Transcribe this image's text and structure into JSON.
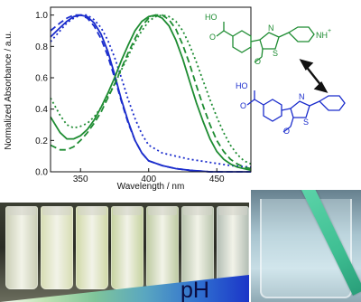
{
  "chart_data": {
    "type": "line",
    "xlabel": "Wavelength / nm",
    "ylabel": "Normalized Absorbance / a.u.",
    "xlim": [
      328,
      475
    ],
    "ylim": [
      0,
      1.05
    ],
    "xticks": [
      350,
      400,
      450
    ],
    "yticks": [
      0.0,
      0.2,
      0.4,
      0.6,
      0.8,
      1.0
    ],
    "yticklabels": [
      "0.0",
      "0.2",
      "0.4",
      "0.6",
      "0.8",
      "1.0"
    ],
    "grid": false,
    "series": [
      {
        "color": "#1a2ccc",
        "style": "solid",
        "x": [
          328,
          335,
          340,
          345,
          350,
          355,
          360,
          365,
          370,
          375,
          380,
          385,
          390,
          395,
          400,
          410,
          420,
          430,
          445,
          460,
          475
        ],
        "y": [
          0.86,
          0.92,
          0.96,
          0.99,
          1.0,
          0.99,
          0.95,
          0.88,
          0.77,
          0.62,
          0.46,
          0.32,
          0.2,
          0.12,
          0.07,
          0.04,
          0.02,
          0.01,
          0.0,
          0.0,
          0.0
        ]
      },
      {
        "color": "#1a2ccc",
        "style": "dashed",
        "x": [
          328,
          335,
          340,
          345,
          350,
          355,
          360,
          365,
          370,
          375,
          380,
          385,
          390,
          395,
          400,
          410,
          420,
          430,
          445,
          460,
          475
        ],
        "y": [
          0.9,
          0.95,
          0.98,
          1.0,
          1.0,
          0.98,
          0.93,
          0.85,
          0.74,
          0.6,
          0.45,
          0.31,
          0.2,
          0.12,
          0.07,
          0.04,
          0.02,
          0.01,
          0.0,
          0.0,
          0.0
        ]
      },
      {
        "color": "#1a2ccc",
        "style": "dotted",
        "x": [
          328,
          335,
          340,
          345,
          350,
          355,
          360,
          365,
          370,
          375,
          380,
          385,
          390,
          395,
          400,
          410,
          420,
          430,
          445,
          460,
          475
        ],
        "y": [
          0.83,
          0.9,
          0.95,
          0.98,
          1.0,
          1.0,
          0.97,
          0.92,
          0.84,
          0.73,
          0.6,
          0.46,
          0.34,
          0.24,
          0.17,
          0.12,
          0.1,
          0.08,
          0.06,
          0.04,
          0.03
        ]
      },
      {
        "color": "#1e8c32",
        "style": "solid",
        "x": [
          328,
          335,
          340,
          345,
          350,
          355,
          360,
          365,
          370,
          375,
          380,
          385,
          390,
          395,
          400,
          405,
          410,
          415,
          420,
          425,
          430,
          435,
          440,
          445,
          450,
          455,
          460,
          465,
          470,
          475
        ],
        "y": [
          0.35,
          0.25,
          0.21,
          0.21,
          0.23,
          0.27,
          0.33,
          0.41,
          0.5,
          0.6,
          0.71,
          0.81,
          0.9,
          0.96,
          0.99,
          1.0,
          0.98,
          0.93,
          0.84,
          0.72,
          0.58,
          0.44,
          0.32,
          0.21,
          0.13,
          0.08,
          0.05,
          0.03,
          0.02,
          0.01
        ]
      },
      {
        "color": "#1e8c32",
        "style": "dashed",
        "x": [
          328,
          335,
          340,
          345,
          350,
          355,
          360,
          365,
          370,
          375,
          380,
          385,
          390,
          395,
          400,
          405,
          410,
          415,
          420,
          425,
          430,
          435,
          440,
          445,
          450,
          455,
          460,
          465,
          470,
          475
        ],
        "y": [
          0.17,
          0.14,
          0.14,
          0.16,
          0.2,
          0.25,
          0.31,
          0.38,
          0.47,
          0.56,
          0.66,
          0.76,
          0.85,
          0.93,
          0.98,
          1.0,
          1.0,
          0.97,
          0.91,
          0.81,
          0.69,
          0.55,
          0.42,
          0.3,
          0.2,
          0.13,
          0.08,
          0.05,
          0.03,
          0.02
        ]
      },
      {
        "color": "#1e8c32",
        "style": "dotted",
        "x": [
          328,
          335,
          340,
          345,
          350,
          355,
          360,
          365,
          370,
          375,
          380,
          385,
          390,
          395,
          400,
          405,
          410,
          415,
          420,
          425,
          430,
          435,
          440,
          445,
          450,
          455,
          460,
          465,
          470,
          475
        ],
        "y": [
          0.47,
          0.36,
          0.3,
          0.28,
          0.29,
          0.31,
          0.35,
          0.41,
          0.48,
          0.56,
          0.65,
          0.74,
          0.83,
          0.9,
          0.96,
          0.99,
          1.0,
          0.99,
          0.96,
          0.9,
          0.81,
          0.7,
          0.58,
          0.46,
          0.35,
          0.25,
          0.17,
          0.11,
          0.07,
          0.05
        ]
      }
    ]
  },
  "molecule_top": {
    "color": "#1e8c32",
    "acid_label": "HO",
    "oxygen_label": "O",
    "methoxy_label": "O",
    "n_label": "N",
    "s_label": "S",
    "pyridinium_label": "NH",
    "charge": "+"
  },
  "molecule_bottom": {
    "color": "#1a2ccc",
    "acid_label": "HO",
    "oxygen_label": "O",
    "methoxy_label": "O",
    "n_label": "N",
    "s_label": "S"
  },
  "photo": {
    "ph_label": "pH",
    "vial_tints": [
      "#c9cdb4",
      "#d6dcb2",
      "#cfd8a6",
      "#c4d19d",
      "#bcc9a0",
      "#b7c3ab",
      "#b1bcb3"
    ]
  }
}
